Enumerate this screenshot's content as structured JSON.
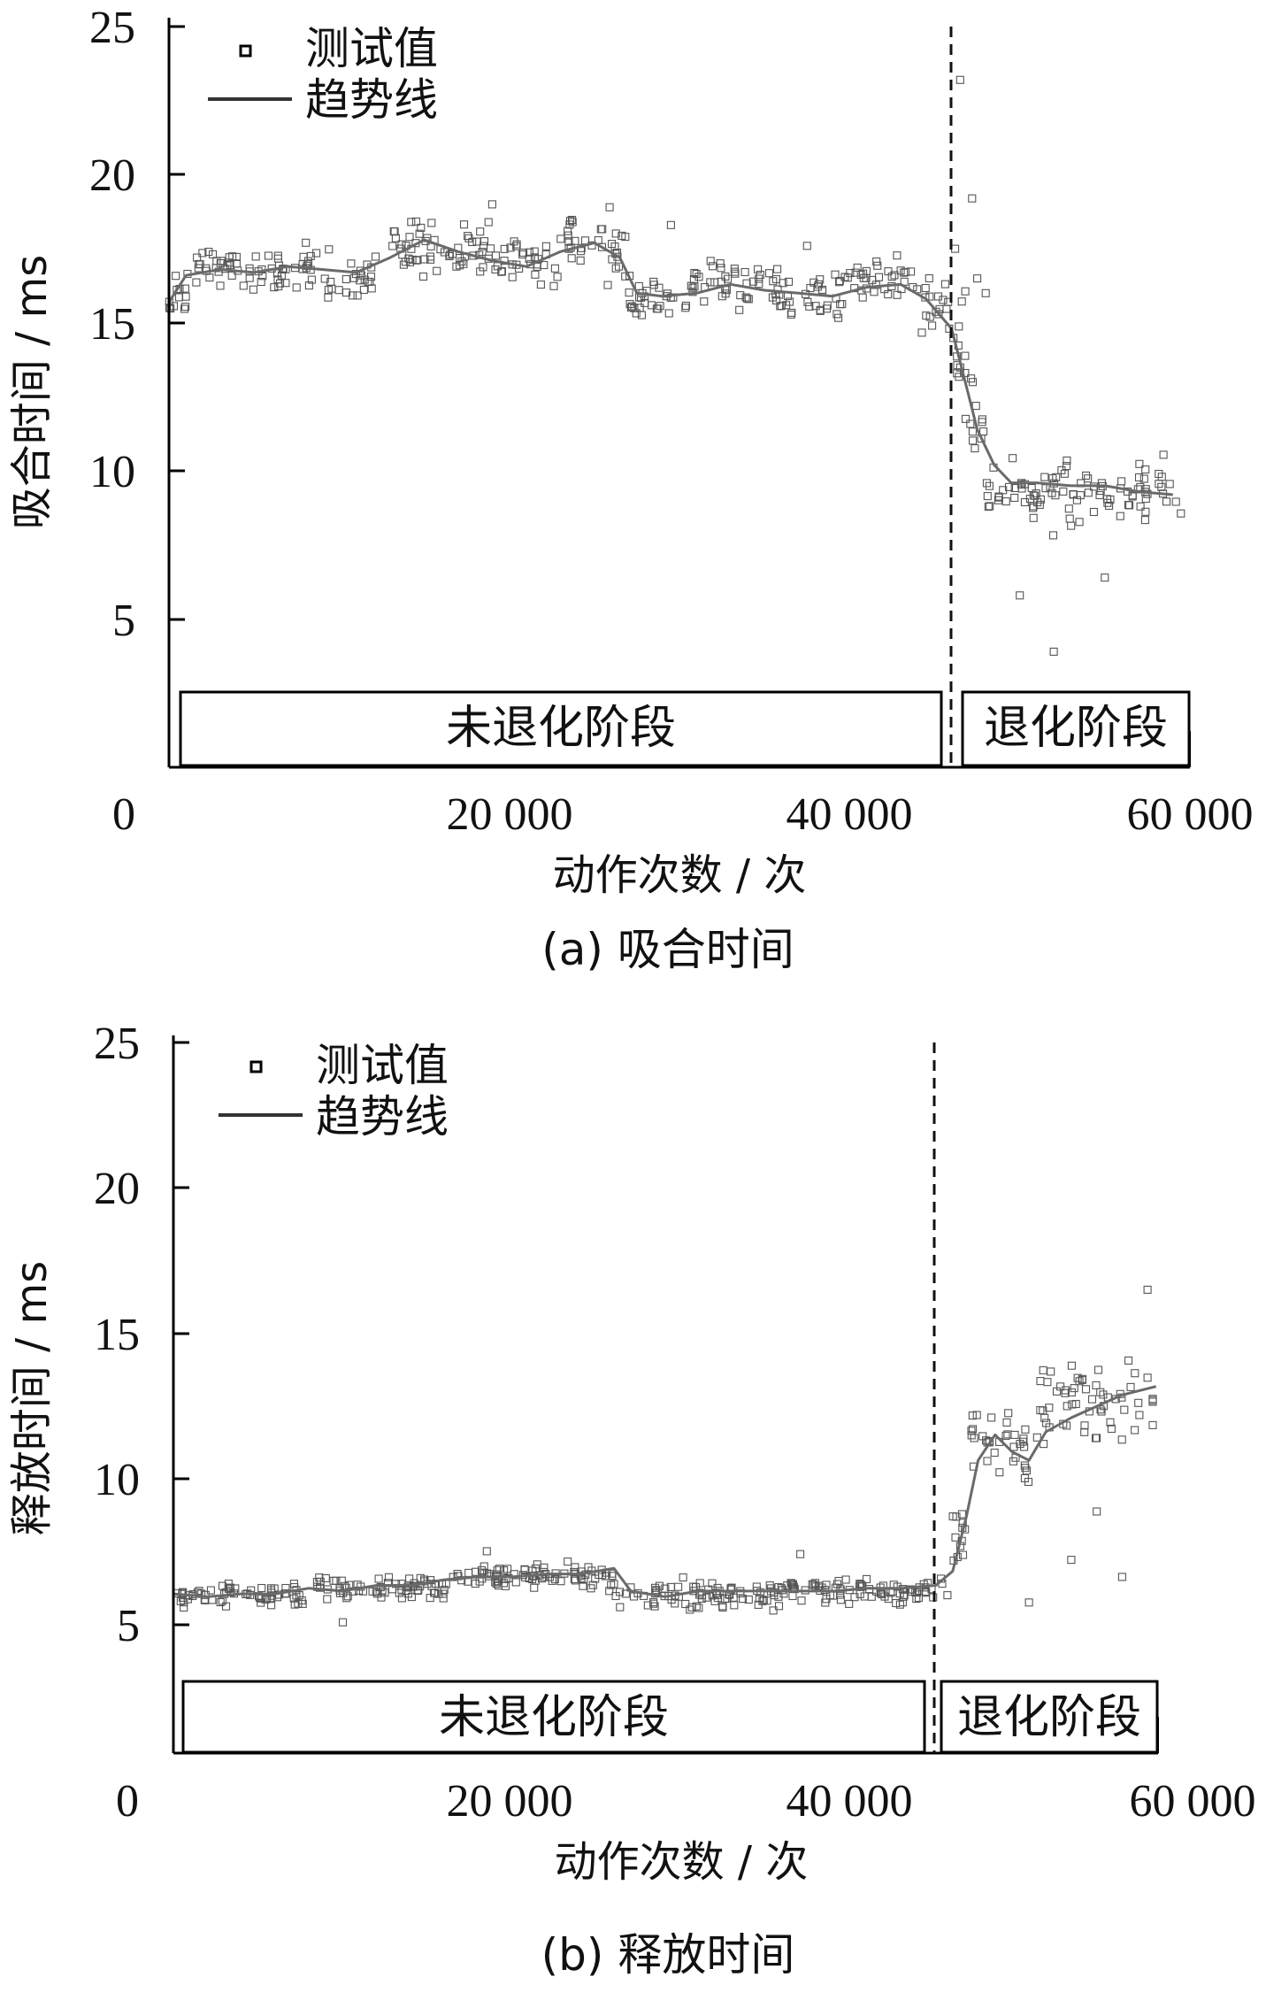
{
  "chart_data": [
    {
      "type": "scatter",
      "caption": "(a)  吸合时间",
      "xlabel": "动作次数 / 次",
      "ylabel": "吸合时间 / ms",
      "xlim": [
        0,
        60000
      ],
      "ylim": [
        0,
        25
      ],
      "xticks": [
        0,
        20000,
        40000,
        60000
      ],
      "xtick_labels": [
        "0",
        "20 000",
        "40 000",
        "60 000"
      ],
      "yticks": [
        5,
        10,
        15,
        20,
        25
      ],
      "ytick_labels": [
        "5",
        "10",
        "15",
        "20",
        "25"
      ],
      "legend": {
        "position": "top-left",
        "entries": [
          "测试值",
          "趋势线"
        ]
      },
      "divider_x": 46000,
      "stages": [
        {
          "label": "未退化阶段",
          "x_start": 700,
          "x_end": 45500
        },
        {
          "label": "退化阶段",
          "x_start": 46700,
          "x_end": 60000
        }
      ],
      "series": [
        {
          "name": "测试值",
          "kind": "scatter",
          "segments": [
            {
              "x_start": 0,
              "x_end": 1000,
              "center": 15.8,
              "spread": 0.9
            },
            {
              "x_start": 1000,
              "x_end": 7500,
              "center": 16.8,
              "spread": 0.7
            },
            {
              "x_start": 7500,
              "x_end": 9500,
              "center": 16.8,
              "spread": 0.8
            },
            {
              "x_start": 9500,
              "x_end": 12000,
              "center": 16.5,
              "spread": 0.8
            },
            {
              "x_start": 12000,
              "x_end": 16000,
              "center": 17.5,
              "spread": 0.8
            },
            {
              "x_start": 16000,
              "x_end": 19500,
              "center": 17.3,
              "spread": 0.8
            },
            {
              "x_start": 19500,
              "x_end": 23000,
              "center": 17.0,
              "spread": 0.8
            },
            {
              "x_start": 23000,
              "x_end": 25500,
              "center": 17.8,
              "spread": 0.6
            },
            {
              "x_start": 25500,
              "x_end": 27000,
              "center": 17.3,
              "spread": 0.8
            },
            {
              "x_start": 27000,
              "x_end": 30500,
              "center": 15.9,
              "spread": 0.7
            },
            {
              "x_start": 30500,
              "x_end": 35000,
              "center": 16.4,
              "spread": 0.8
            },
            {
              "x_start": 35000,
              "x_end": 40000,
              "center": 16.0,
              "spread": 0.8
            },
            {
              "x_start": 40000,
              "x_end": 44000,
              "center": 16.4,
              "spread": 0.8
            },
            {
              "x_start": 44000,
              "x_end": 46000,
              "center": 15.6,
              "spread": 1.0
            },
            {
              "x_start": 46000,
              "x_end": 46800,
              "center": 14.0,
              "spread": 1.5
            },
            {
              "x_start": 46800,
              "x_end": 48000,
              "center": 11.5,
              "spread": 1.6
            },
            {
              "x_start": 48000,
              "x_end": 59500,
              "center": 9.3,
              "spread": 1.0
            }
          ],
          "outliers": [
            [
              19000,
              19.0
            ],
            [
              25900,
              18.9
            ],
            [
              29500,
              18.3
            ],
            [
              37500,
              17.6
            ],
            [
              46500,
              23.2
            ],
            [
              47200,
              19.2
            ],
            [
              48000,
              16.0
            ],
            [
              46200,
              17.5
            ],
            [
              50000,
              5.8
            ],
            [
              55000,
              6.4
            ],
            [
              52000,
              3.9
            ],
            [
              47500,
              16.5
            ]
          ]
        },
        {
          "name": "趋势线",
          "kind": "line",
          "x": [
            0,
            1000,
            3000,
            5000,
            7000,
            9000,
            11000,
            13000,
            15000,
            17000,
            19000,
            21000,
            23000,
            25000,
            26500,
            27500,
            29000,
            31000,
            33000,
            35000,
            37000,
            39000,
            41000,
            43000,
            44500,
            46000,
            46800,
            47500,
            48500,
            49500,
            51000,
            53000,
            55000,
            57000,
            59000
          ],
          "y": [
            15.7,
            16.6,
            16.8,
            16.7,
            16.9,
            16.8,
            16.7,
            17.2,
            17.8,
            17.4,
            17.1,
            16.9,
            17.4,
            17.7,
            17.2,
            16.0,
            15.9,
            16.0,
            16.3,
            16.1,
            16.0,
            15.9,
            16.2,
            16.3,
            15.8,
            14.8,
            13.0,
            11.4,
            10.2,
            9.6,
            9.6,
            9.5,
            9.5,
            9.3,
            9.2
          ]
        }
      ]
    },
    {
      "type": "scatter",
      "caption": "(b)  释放时间",
      "xlabel": "动作次数 / 次",
      "ylabel": "释放时间 / ms",
      "xlim": [
        0,
        60000
      ],
      "ylim": [
        0,
        25
      ],
      "xticks": [
        0,
        20000,
        40000,
        60000
      ],
      "xtick_labels": [
        "0",
        "20 000",
        "40 000",
        "60 000"
      ],
      "yticks": [
        5,
        10,
        15,
        20,
        25
      ],
      "ytick_labels": [
        "5",
        "10",
        "15",
        "20",
        "25"
      ],
      "legend": {
        "position": "top-left",
        "entries": [
          "测试值",
          "趋势线"
        ]
      },
      "divider_x": 46000,
      "stages": [
        {
          "label": "未退化阶段",
          "x_start": 700,
          "x_end": 45500
        },
        {
          "label": "退化阶段",
          "x_start": 46400,
          "x_end": 59500
        }
      ],
      "series": [
        {
          "name": "测试值",
          "kind": "scatter",
          "segments": [
            {
              "x_start": 0,
              "x_end": 8000,
              "center": 5.6,
              "spread": 0.35
            },
            {
              "x_start": 8000,
              "x_end": 16000,
              "center": 5.8,
              "spread": 0.4
            },
            {
              "x_start": 16000,
              "x_end": 26000,
              "center": 6.2,
              "spread": 0.4
            },
            {
              "x_start": 26000,
              "x_end": 36000,
              "center": 5.6,
              "spread": 0.45
            },
            {
              "x_start": 36000,
              "x_end": 46000,
              "center": 5.7,
              "spread": 0.45
            },
            {
              "x_start": 46000,
              "x_end": 46800,
              "center": 7.2,
              "spread": 1.2
            },
            {
              "x_start": 46800,
              "x_end": 51000,
              "center": 10.6,
              "spread": 1.3
            },
            {
              "x_start": 51000,
              "x_end": 58000,
              "center": 12.4,
              "spread": 1.4
            }
          ],
          "outliers": [
            [
              10000,
              4.6
            ],
            [
              18500,
              7.1
            ],
            [
              37000,
              7.0
            ],
            [
              53000,
              6.8
            ],
            [
              56000,
              6.2
            ],
            [
              57500,
              16.3
            ],
            [
              50500,
              5.3
            ],
            [
              54500,
              8.5
            ]
          ]
        },
        {
          "name": "趋势线",
          "kind": "line",
          "x": [
            0,
            2000,
            4000,
            6000,
            8000,
            10000,
            12000,
            14000,
            16000,
            18000,
            20000,
            22000,
            24000,
            26000,
            27000,
            29000,
            31000,
            33000,
            35000,
            37000,
            39000,
            41000,
            43000,
            45000,
            46000,
            46800,
            47500,
            48500,
            49500,
            50500,
            51500,
            53000,
            54500,
            56000,
            58000
          ],
          "y": [
            5.6,
            5.5,
            5.6,
            5.6,
            5.8,
            5.7,
            5.9,
            5.9,
            6.1,
            6.2,
            6.2,
            6.3,
            6.3,
            6.5,
            5.7,
            5.5,
            5.7,
            5.7,
            5.7,
            5.7,
            5.7,
            5.8,
            5.8,
            5.9,
            6.4,
            8.3,
            10.3,
            11.2,
            10.6,
            10.3,
            11.3,
            11.8,
            12.2,
            12.6,
            12.9
          ]
        }
      ]
    }
  ]
}
